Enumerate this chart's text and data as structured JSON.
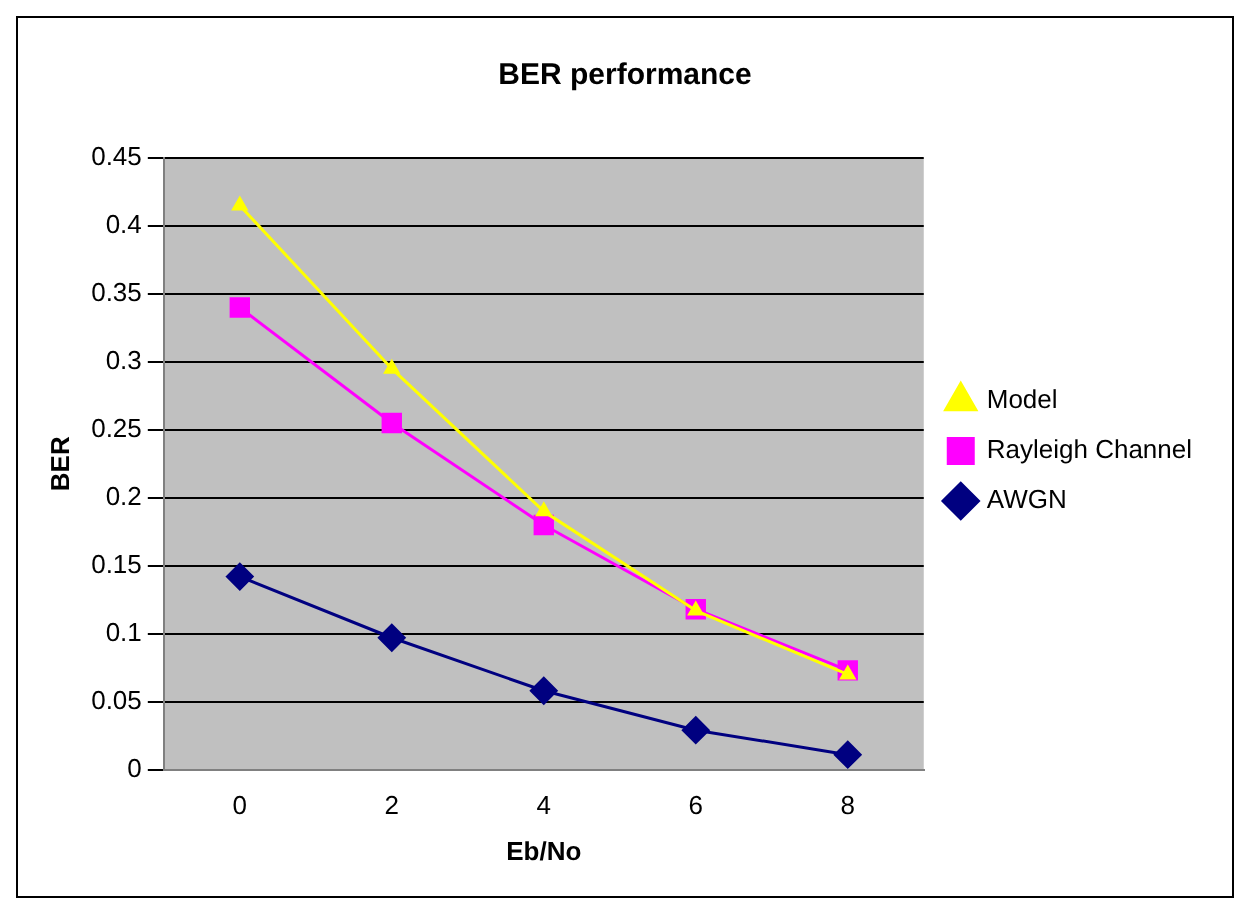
{
  "chart_data": {
    "type": "line",
    "title": "BER performance",
    "xlabel": "Eb/No",
    "ylabel": "BER",
    "categories": [
      "0",
      "2",
      "4",
      "6",
      "8"
    ],
    "ylim": [
      0,
      0.45
    ],
    "yticks": [
      0,
      0.05,
      0.1,
      0.15,
      0.2,
      0.25,
      0.3,
      0.35,
      0.4,
      0.45
    ],
    "grid": "y",
    "legend": "right",
    "series": [
      {
        "name": "Model",
        "color": "#ffff00",
        "marker": "triangle",
        "values": [
          0.415,
          0.295,
          0.19,
          0.117,
          0.07
        ]
      },
      {
        "name": "Rayleigh Channel",
        "color": "#ff00ff",
        "marker": "square",
        "values": [
          0.34,
          0.255,
          0.18,
          0.118,
          0.073
        ]
      },
      {
        "name": "AWGN",
        "color": "#000080",
        "marker": "diamond",
        "values": [
          0.142,
          0.097,
          0.058,
          0.029,
          0.011
        ]
      }
    ]
  }
}
